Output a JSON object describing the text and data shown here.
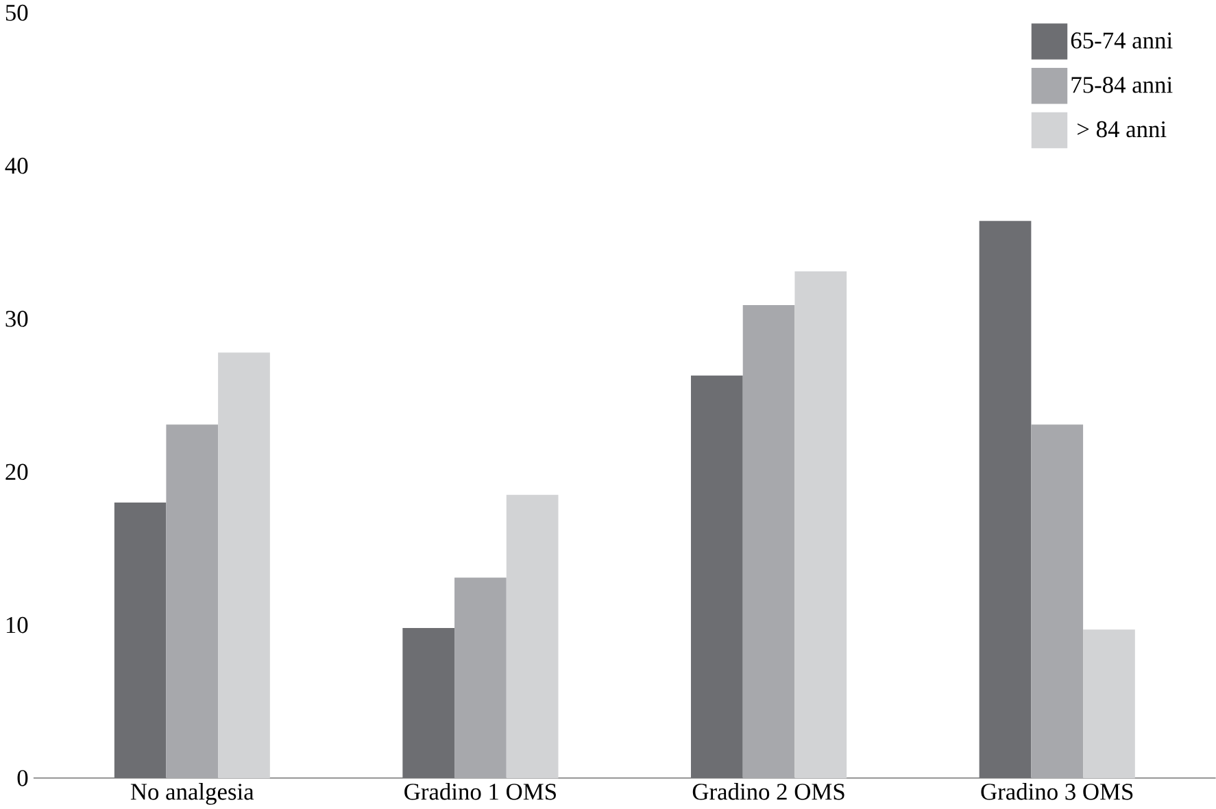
{
  "chart_data": {
    "type": "bar",
    "categories": [
      "No analgesia",
      "Gradino 1 OMS",
      "Gradino 2 OMS",
      "Gradino 3 OMS"
    ],
    "series": [
      {
        "name": "65-74 anni",
        "color": "#6d6e72",
        "values": [
          18,
          9.8,
          26.3,
          36.4
        ]
      },
      {
        "name": "75-84 anni",
        "color": "#a7a8ac",
        "values": [
          23.1,
          13.1,
          30.9,
          23.1
        ]
      },
      {
        "name": "> 84 anni",
        "color": "#d2d3d5",
        "values": [
          27.8,
          18.5,
          33.1,
          9.7
        ]
      }
    ],
    "ylim": [
      0,
      50
    ],
    "yticks": [
      0,
      10,
      20,
      30,
      40,
      50
    ],
    "grid": false,
    "legend": "top right"
  }
}
